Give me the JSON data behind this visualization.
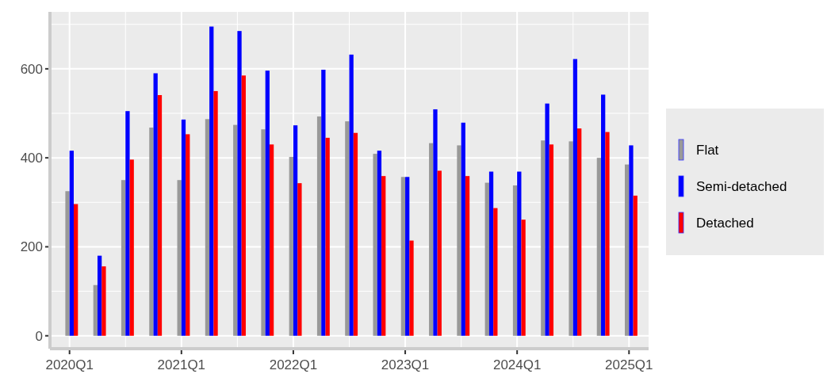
{
  "chart_data": {
    "type": "bar",
    "categories": [
      "2020Q1",
      null,
      null,
      null,
      "2021Q1",
      null,
      null,
      null,
      "2022Q1",
      null,
      null,
      null,
      "2023Q1",
      null,
      null,
      null,
      "2024Q1",
      null,
      null,
      null,
      "2025Q1"
    ],
    "series": [
      {
        "name": "Flat",
        "color": "#999999",
        "values": [
          325,
          114,
          350,
          468,
          350,
          487,
          474,
          464,
          402,
          493,
          482,
          409,
          357,
          433,
          428,
          344,
          338,
          439,
          437,
          400,
          385
        ]
      },
      {
        "name": "Semi-detached",
        "color": "#0000ff",
        "values": [
          416,
          180,
          505,
          590,
          486,
          695,
          685,
          596,
          473,
          598,
          632,
          416,
          357,
          509,
          479,
          369,
          369,
          522,
          622,
          542,
          428
        ]
      },
      {
        "name": "Detached",
        "color": "#ff0000",
        "values": [
          296,
          156,
          396,
          541,
          453,
          550,
          585,
          430,
          343,
          445,
          456,
          359,
          214,
          371,
          359,
          287,
          261,
          430,
          466,
          458,
          315
        ]
      }
    ],
    "ylim": [
      -29,
      728
    ],
    "yticks": [
      0,
      200,
      400,
      600
    ],
    "grid": true,
    "legend": "right"
  }
}
